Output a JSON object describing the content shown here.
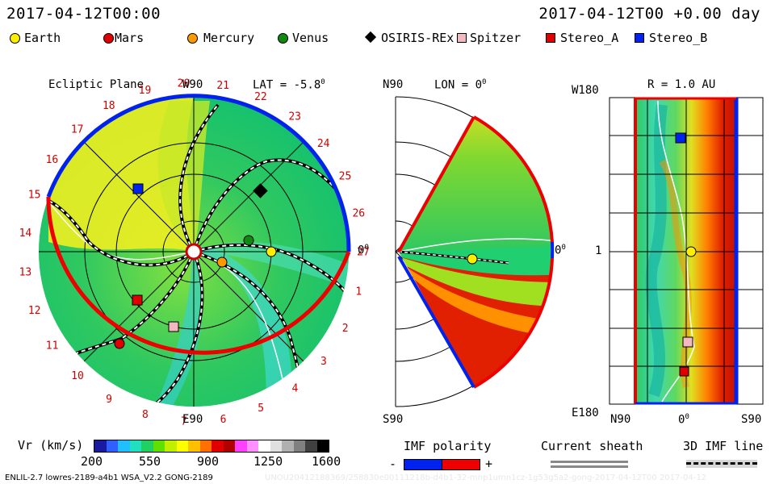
{
  "header": {
    "left_time": "2017-04-12T00:00",
    "right_time": "2017-04-12T00 +0.00 day"
  },
  "legend": [
    {
      "label": "Earth",
      "color": "#ffee00",
      "shape": "circle"
    },
    {
      "label": "Mars",
      "color": "#e00000",
      "shape": "circle"
    },
    {
      "label": "Mercury",
      "color": "#ff9900",
      "shape": "circle"
    },
    {
      "label": "Venus",
      "color": "#118811",
      "shape": "circle"
    },
    {
      "label": "OSIRIS-REx",
      "color": "#000000",
      "shape": "diamond"
    },
    {
      "label": "Spitzer",
      "color": "#f4b8c0",
      "shape": "square"
    },
    {
      "label": "Stereo_A",
      "color": "#e00000",
      "shape": "square"
    },
    {
      "label": "Stereo_B",
      "color": "#0022ee",
      "shape": "square"
    }
  ],
  "ecliptic": {
    "title": "Ecliptic Plane",
    "lat_label": "LAT = -5.8",
    "deg": "0",
    "w90": "W90",
    "e90": "E90",
    "zero": "0",
    "carrington_labels": [
      "1",
      "2",
      "3",
      "4",
      "5",
      "6",
      "7",
      "8",
      "9",
      "10",
      "11",
      "12",
      "13",
      "14",
      "15",
      "16",
      "17",
      "18",
      "19",
      "20",
      "21",
      "22",
      "23",
      "24",
      "25",
      "26",
      "27"
    ]
  },
  "meridional": {
    "lon_label": "LON = 0",
    "deg": "0",
    "n90": "N90",
    "s90": "S90",
    "zero": "0"
  },
  "radial": {
    "r_label": "R = 1.0 AU",
    "w180": "W180",
    "e180": "E180",
    "one": "1",
    "n90": "N90",
    "zero": "0",
    "s90": "S90",
    "deg": "0"
  },
  "colorbar": {
    "label": "Vr (km/s)",
    "ticks": [
      "200",
      "550",
      "900",
      "1250",
      "1600"
    ],
    "colors": [
      "#1a1aa0",
      "#3060ff",
      "#20c0ff",
      "#20e0c0",
      "#20d060",
      "#60e000",
      "#c0f000",
      "#ffff00",
      "#ffc000",
      "#ff7000",
      "#e00000",
      "#b00000",
      "#ff40ff",
      "#ff90ff",
      "#ffffff",
      "#e0e0e0",
      "#b0b0b0",
      "#808080",
      "#404040",
      "#000000"
    ]
  },
  "imf": {
    "label": "IMF polarity",
    "minus": "-",
    "plus": "+",
    "neg_color": "#0022ee",
    "pos_color": "#ee0000"
  },
  "sheath": {
    "label": "Current sheath"
  },
  "imf3d": {
    "label": "3D IMF line"
  },
  "footer": {
    "left": "ENLIL-2.7 lowres-2189-a4b1 WSA_V2.2 GONG-2189",
    "right": "UNOU20412188369/258830e00111218b-d4b1-32-mnp1umn1cz-1g53g5a2-gong-2017-04-12T00 2017-04-12"
  },
  "chart_data": [
    {
      "type": "heatmap",
      "panel": "ecliptic-plane",
      "title": "Ecliptic Plane",
      "annotation": "LAT = -5.8°",
      "objects": [
        {
          "name": "Earth",
          "angle_deg": 0,
          "r_au": 1.0
        },
        {
          "name": "Mercury",
          "angle_deg": -45,
          "r_au": 0.38
        },
        {
          "name": "Venus",
          "angle_deg": 14,
          "r_au": 0.72
        },
        {
          "name": "OSIRIS-REx",
          "angle_deg": 47,
          "r_au": 1.15
        },
        {
          "name": "Stereo_B",
          "angle_deg": 131,
          "r_au": 1.0
        },
        {
          "name": "Stereo_A",
          "angle_deg": 208,
          "r_au": 0.96
        },
        {
          "name": "Spitzer",
          "angle_deg": 247,
          "r_au": 1.05
        },
        {
          "name": "Mars",
          "angle_deg": 214,
          "r_au": 1.64
        }
      ],
      "imf_polarity_rim": [
        "blue: W side (approx. 15 to 27, 0)",
        "red: E side (approx. 1 to 14)"
      ]
    },
    {
      "type": "heatmap",
      "panel": "meridional-plane",
      "annotation": "LON = 0°",
      "objects": [
        {
          "name": "Earth",
          "lat_deg": 0,
          "r_au": 1.0
        }
      ]
    },
    {
      "type": "heatmap",
      "panel": "radial-map",
      "annotation": "R = 1.0 AU",
      "x_axis": [
        "N90",
        "0°",
        "S90"
      ],
      "y_axis": [
        "W180",
        "1",
        "E180"
      ],
      "objects": [
        {
          "name": "Stereo_B",
          "note": "upper"
        },
        {
          "name": "Earth",
          "note": "center"
        },
        {
          "name": "Spitzer",
          "note": "lower"
        },
        {
          "name": "Stereo_A",
          "note": "lowest"
        }
      ]
    }
  ]
}
